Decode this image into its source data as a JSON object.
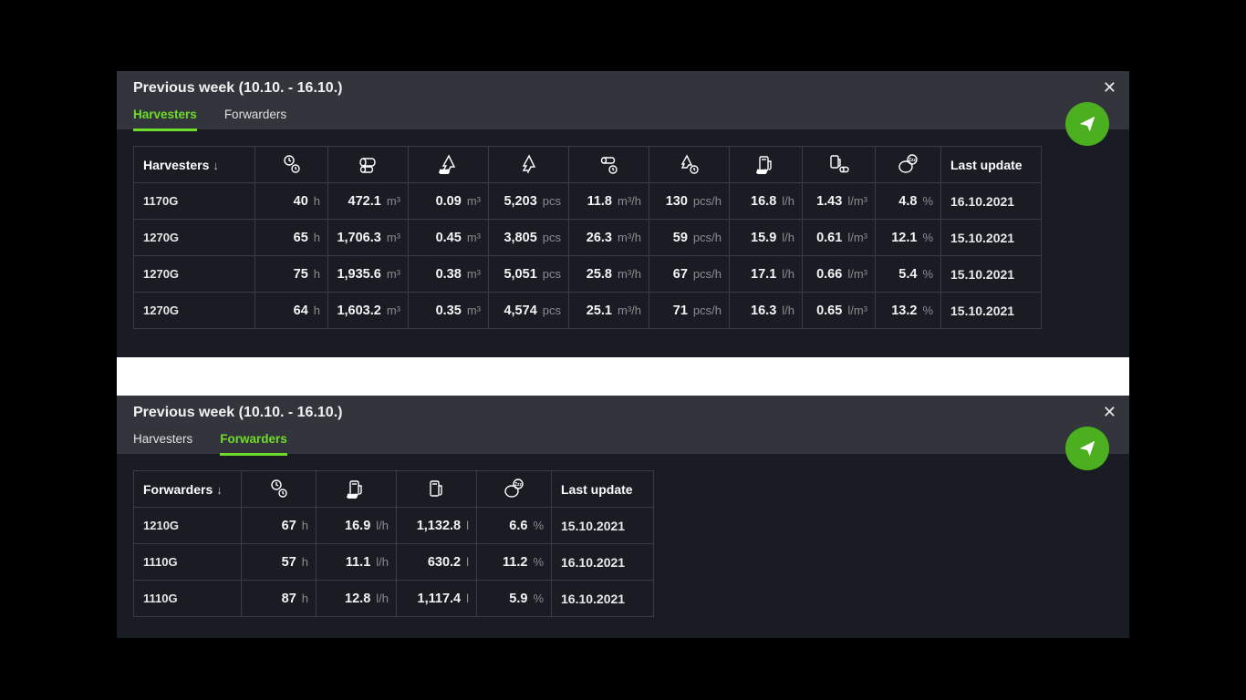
{
  "colors": {
    "panel_bg": "#1a1c23",
    "header_bg": "#33353c",
    "accent": "#6fdb2a",
    "send_btn": "#4caf1f",
    "border": "#3a3c43",
    "unit_text": "#8a8c92"
  },
  "panel1": {
    "title": "Previous week (10.10. - 16.10.)",
    "tabs": {
      "harvesters": "Harvesters",
      "forwarders": "Forwarders",
      "active": "harvesters"
    },
    "sort_column_label": "Harvesters",
    "last_update_header": "Last update",
    "units": {
      "hours": "h",
      "volume": "m³",
      "pieces": "pcs",
      "volume_rate": "m³/h",
      "pieces_rate": "pcs/h",
      "fuel_rate": "l/h",
      "fuel_per_vol": "l/m³",
      "percent": "%"
    },
    "rows": [
      {
        "model": "1170G",
        "hours": "40",
        "volume": "472.1",
        "avg_stem": "0.09",
        "pieces": "5,203",
        "vol_rate": "11.8",
        "pcs_rate": "130",
        "fuel_rate": "16.8",
        "fuel_per_vol": "1.43",
        "idle_pct": "4.8",
        "last_update": "16.10.2021"
      },
      {
        "model": "1270G",
        "hours": "65",
        "volume": "1,706.3",
        "avg_stem": "0.45",
        "pieces": "3,805",
        "vol_rate": "26.3",
        "pcs_rate": "59",
        "fuel_rate": "15.9",
        "fuel_per_vol": "0.61",
        "idle_pct": "12.1",
        "last_update": "15.10.2021"
      },
      {
        "model": "1270G",
        "hours": "75",
        "volume": "1,935.6",
        "avg_stem": "0.38",
        "pieces": "5,051",
        "vol_rate": "25.8",
        "pcs_rate": "67",
        "fuel_rate": "17.1",
        "fuel_per_vol": "0.66",
        "idle_pct": "5.4",
        "last_update": "15.10.2021"
      },
      {
        "model": "1270G",
        "hours": "64",
        "volume": "1,603.2",
        "avg_stem": "0.35",
        "pieces": "4,574",
        "vol_rate": "25.1",
        "pcs_rate": "71",
        "fuel_rate": "16.3",
        "fuel_per_vol": "0.65",
        "idle_pct": "13.2",
        "last_update": "15.10.2021"
      }
    ]
  },
  "panel2": {
    "title": "Previous week (10.10. - 16.10.)",
    "tabs": {
      "harvesters": "Harvesters",
      "forwarders": "Forwarders",
      "active": "forwarders"
    },
    "sort_column_label": "Forwarders",
    "last_update_header": "Last update",
    "units": {
      "hours": "h",
      "fuel_rate": "l/h",
      "fuel_total": "l",
      "percent": "%"
    },
    "rows": [
      {
        "model": "1210G",
        "hours": "67",
        "fuel_rate": "16.9",
        "fuel_total": "1,132.8",
        "idle_pct": "6.6",
        "last_update": "15.10.2021"
      },
      {
        "model": "1110G",
        "hours": "57",
        "fuel_rate": "11.1",
        "fuel_total": "630.2",
        "idle_pct": "11.2",
        "last_update": "16.10.2021"
      },
      {
        "model": "1110G",
        "hours": "87",
        "fuel_rate": "12.8",
        "fuel_total": "1,117.4",
        "idle_pct": "5.9",
        "last_update": "16.10.2021"
      }
    ]
  }
}
